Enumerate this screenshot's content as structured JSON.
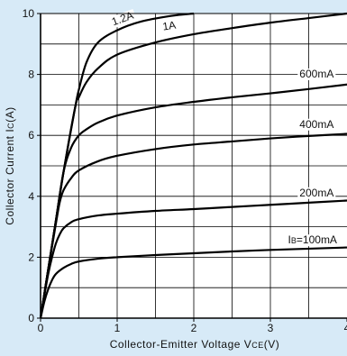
{
  "chart_data": {
    "type": "line",
    "title": "",
    "xlabel": "Collector-Emitter Voltage V",
    "xlabel_sub": "CE",
    "xlabel_unit": "(V)",
    "ylabel": "Collector Current I",
    "ylabel_sub": "C",
    "ylabel_unit": "(A)",
    "xlim": [
      0,
      4
    ],
    "ylim": [
      0,
      10
    ],
    "x_major_ticks": [
      0,
      1,
      2,
      3,
      4
    ],
    "y_major_ticks": [
      0,
      2,
      4,
      6,
      8,
      10
    ],
    "x_tick_labels": [
      "0",
      "1",
      "2",
      "3",
      "4"
    ],
    "y_tick_labels": [
      "0",
      "2",
      "4",
      "6",
      "8",
      "10"
    ],
    "grid": true,
    "background_color": "#d7eaf7",
    "plot_color": "#ffffff",
    "line_color": "#000000",
    "series": [
      {
        "name": "100mA",
        "label_prefix": "I",
        "label_sub": "B",
        "label_text": "=100mA",
        "points": [
          [
            0,
            0
          ],
          [
            0.05,
            0.55
          ],
          [
            0.1,
            0.95
          ],
          [
            0.15,
            1.25
          ],
          [
            0.2,
            1.45
          ],
          [
            0.3,
            1.65
          ],
          [
            0.4,
            1.78
          ],
          [
            0.5,
            1.86
          ],
          [
            0.75,
            1.95
          ],
          [
            1.0,
            2.0
          ],
          [
            1.5,
            2.07
          ],
          [
            2.0,
            2.13
          ],
          [
            2.5,
            2.19
          ],
          [
            3.0,
            2.24
          ],
          [
            3.5,
            2.28
          ],
          [
            4.0,
            2.32
          ]
        ]
      },
      {
        "name": "200mA",
        "label_text": "200mA",
        "points": [
          [
            0,
            0
          ],
          [
            0.05,
            0.75
          ],
          [
            0.1,
            1.45
          ],
          [
            0.15,
            2.0
          ],
          [
            0.2,
            2.45
          ],
          [
            0.25,
            2.75
          ],
          [
            0.3,
            2.95
          ],
          [
            0.4,
            3.15
          ],
          [
            0.5,
            3.25
          ],
          [
            0.75,
            3.37
          ],
          [
            1.0,
            3.43
          ],
          [
            1.5,
            3.52
          ],
          [
            2.0,
            3.58
          ],
          [
            2.5,
            3.65
          ],
          [
            3.0,
            3.72
          ],
          [
            3.5,
            3.79
          ],
          [
            4.0,
            3.86
          ]
        ]
      },
      {
        "name": "400mA",
        "label_text": "400mA",
        "points": [
          [
            0,
            0
          ],
          [
            0.1,
            1.6
          ],
          [
            0.2,
            3.1
          ],
          [
            0.25,
            3.8
          ],
          [
            0.3,
            4.2
          ],
          [
            0.4,
            4.6
          ],
          [
            0.5,
            4.85
          ],
          [
            0.75,
            5.15
          ],
          [
            1.0,
            5.33
          ],
          [
            1.5,
            5.55
          ],
          [
            2.0,
            5.7
          ],
          [
            2.5,
            5.8
          ],
          [
            3.0,
            5.9
          ],
          [
            3.5,
            5.98
          ],
          [
            4.0,
            6.05
          ]
        ]
      },
      {
        "name": "600mA",
        "label_text": "600mA",
        "points": [
          [
            0,
            0
          ],
          [
            0.1,
            1.6
          ],
          [
            0.2,
            3.2
          ],
          [
            0.3,
            4.8
          ],
          [
            0.4,
            5.6
          ],
          [
            0.5,
            6.0
          ],
          [
            0.6,
            6.2
          ],
          [
            0.75,
            6.42
          ],
          [
            1.0,
            6.65
          ],
          [
            1.5,
            6.92
          ],
          [
            2.0,
            7.1
          ],
          [
            2.5,
            7.25
          ],
          [
            3.0,
            7.38
          ],
          [
            3.5,
            7.52
          ],
          [
            4.0,
            7.67
          ]
        ]
      },
      {
        "name": "1A",
        "label_text": "1A",
        "points": [
          [
            0,
            0
          ],
          [
            0.1,
            1.6
          ],
          [
            0.2,
            3.2
          ],
          [
            0.3,
            4.8
          ],
          [
            0.45,
            6.9
          ],
          [
            0.5,
            7.25
          ],
          [
            0.6,
            7.75
          ],
          [
            0.75,
            8.2
          ],
          [
            1.0,
            8.65
          ],
          [
            1.5,
            9.05
          ],
          [
            2.0,
            9.32
          ],
          [
            2.5,
            9.52
          ],
          [
            3.0,
            9.7
          ],
          [
            3.5,
            9.85
          ],
          [
            4.0,
            10.0
          ]
        ]
      },
      {
        "name": "1.2A",
        "label_text": "1.2A",
        "points": [
          [
            0,
            0
          ],
          [
            0.1,
            1.6
          ],
          [
            0.2,
            3.2
          ],
          [
            0.3,
            4.8
          ],
          [
            0.45,
            6.9
          ],
          [
            0.5,
            7.5
          ],
          [
            0.6,
            8.4
          ],
          [
            0.75,
            9.05
          ],
          [
            1.0,
            9.45
          ],
          [
            1.3,
            9.73
          ],
          [
            1.7,
            9.92
          ],
          [
            2.0,
            10.0
          ]
        ]
      }
    ],
    "curve_labels": [
      {
        "series": "1.2A",
        "x": 0.95,
        "y": 9.6,
        "rotate": -20
      },
      {
        "series": "1A",
        "x": 1.6,
        "y": 9.45,
        "rotate": -8
      },
      {
        "series": "600mA",
        "x": 3.38,
        "y": 7.9,
        "rotate": 0
      },
      {
        "series": "400mA",
        "x": 3.38,
        "y": 6.25,
        "rotate": 0
      },
      {
        "series": "200mA",
        "x": 3.38,
        "y": 4.0,
        "rotate": 0
      },
      {
        "series": "100mA",
        "x": 3.23,
        "y": 2.45,
        "rotate": 0
      }
    ]
  }
}
